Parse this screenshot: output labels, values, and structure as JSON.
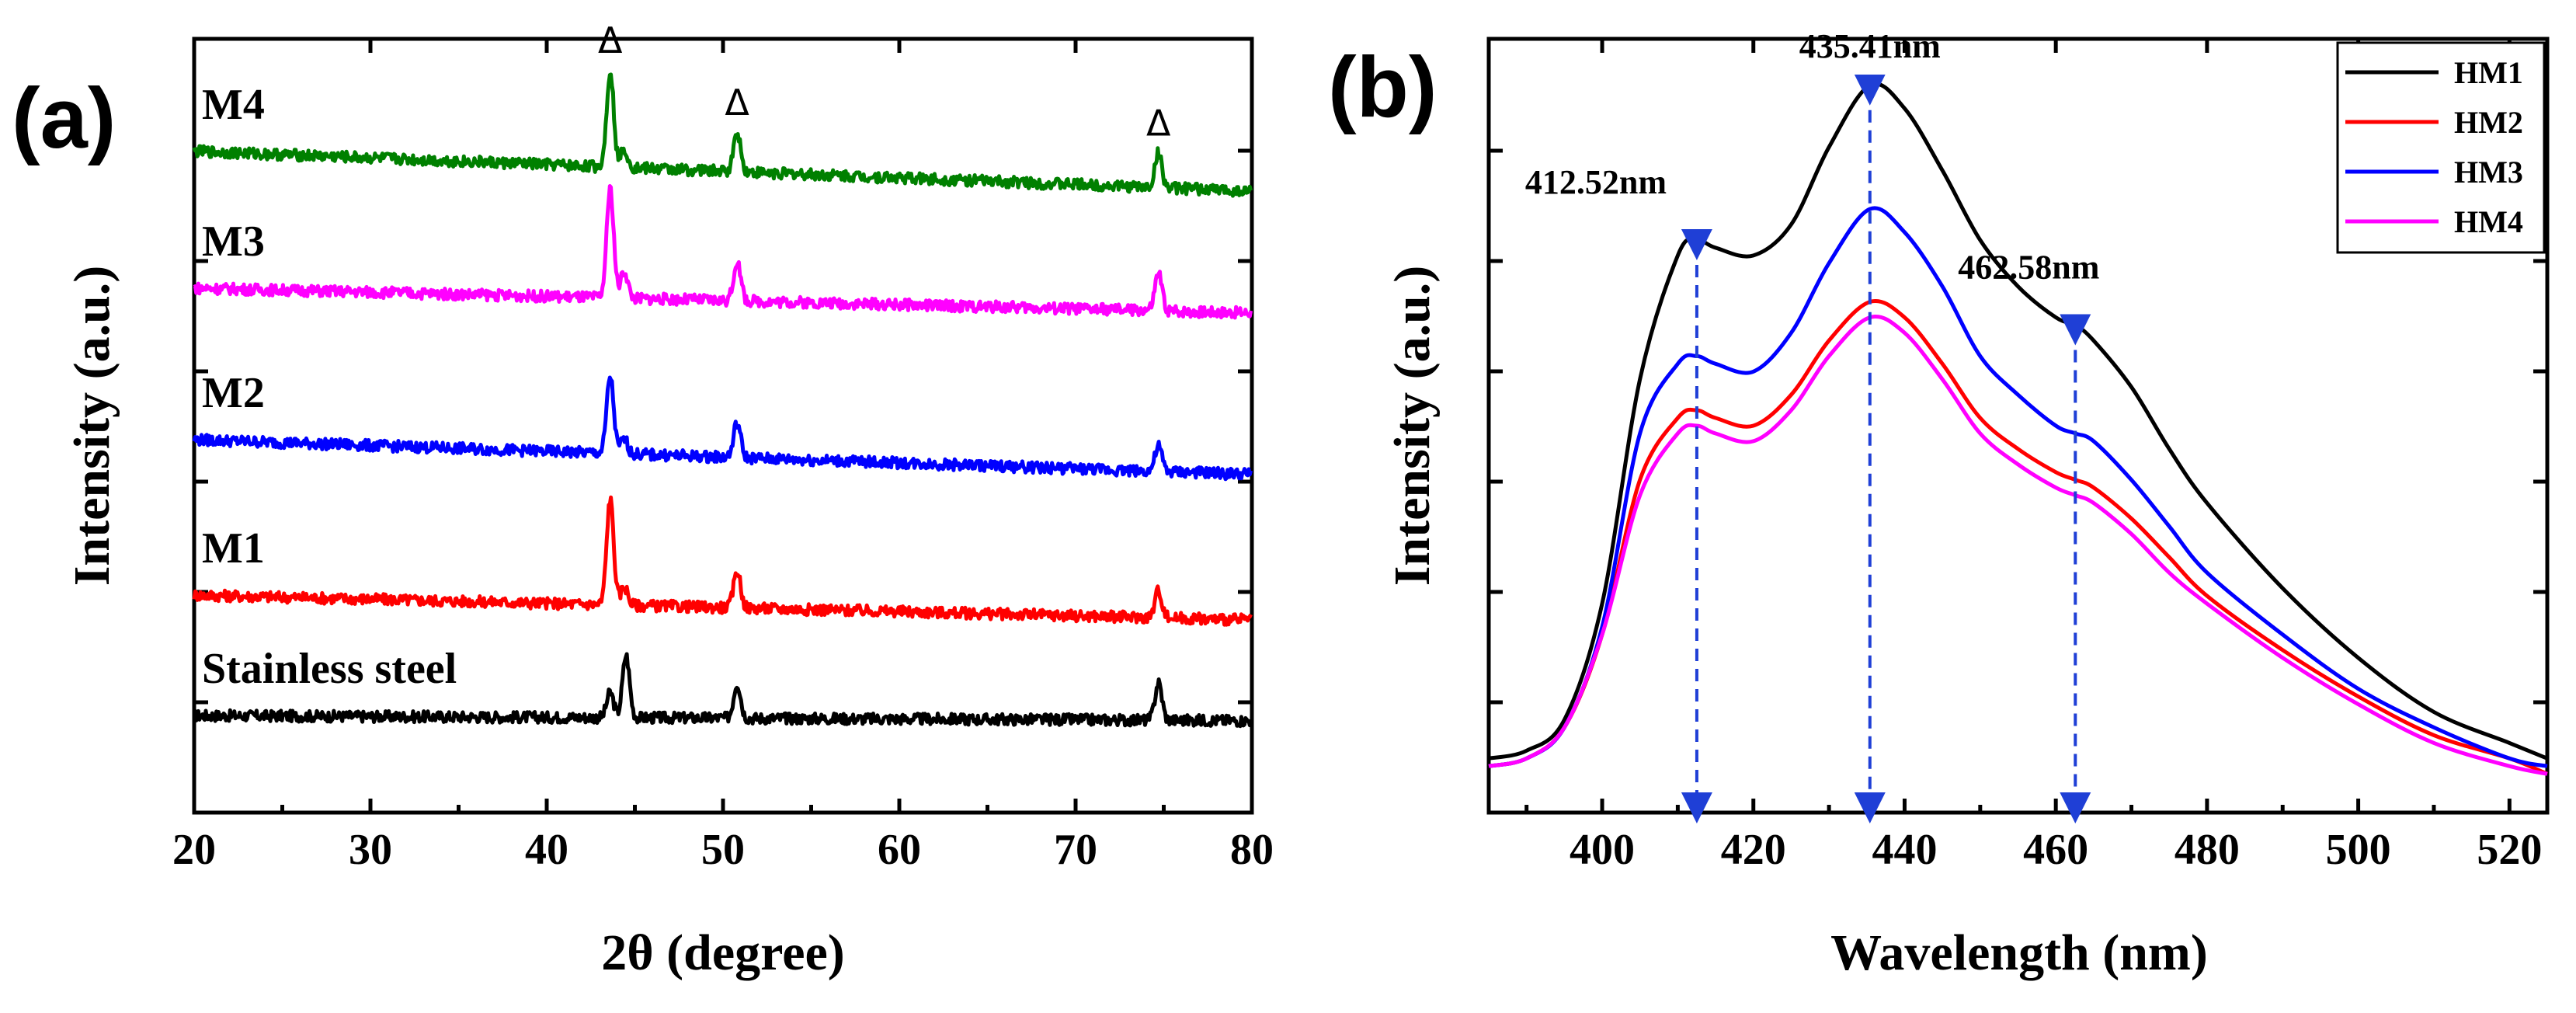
{
  "chart_data": [
    {
      "panel": "(a)",
      "type": "line",
      "xlabel": "2θ (degree)",
      "ylabel": "Intensity (a.u.)",
      "xlim": [
        20,
        80
      ],
      "xticks": [
        20,
        30,
        40,
        50,
        60,
        70,
        80
      ],
      "yticks_labeled": false,
      "peak_marker": "Δ",
      "peak_marker_positions": [
        43.6,
        50.8,
        74.7
      ],
      "series": [
        {
          "name": "Stainless steel",
          "color": "#000000",
          "baseline_start": 0.78,
          "baseline_end": 0.74,
          "peaks": [
            {
              "x": 43.6,
              "h": 0.2
            },
            {
              "x": 44.5,
              "h": 0.5
            },
            {
              "x": 50.8,
              "h": 0.28
            },
            {
              "x": 74.7,
              "h": 0.3
            }
          ]
        },
        {
          "name": "M1",
          "color": "#ff0000",
          "baseline_start": 1.75,
          "baseline_end": 1.55,
          "peaks": [
            {
              "x": 43.6,
              "h": 0.85
            },
            {
              "x": 44.4,
              "h": 0.15
            },
            {
              "x": 50.8,
              "h": 0.3
            },
            {
              "x": 74.7,
              "h": 0.22
            }
          ]
        },
        {
          "name": "M2",
          "color": "#0000ff",
          "baseline_start": 3.0,
          "baseline_end": 2.72,
          "peaks": [
            {
              "x": 43.6,
              "h": 0.62
            },
            {
              "x": 44.4,
              "h": 0.12
            },
            {
              "x": 50.8,
              "h": 0.28
            },
            {
              "x": 74.7,
              "h": 0.2
            }
          ]
        },
        {
          "name": "M3",
          "color": "#ff00ff",
          "baseline_start": 4.22,
          "baseline_end": 4.02,
          "peaks": [
            {
              "x": 43.6,
              "h": 0.88
            },
            {
              "x": 44.4,
              "h": 0.22
            },
            {
              "x": 50.8,
              "h": 0.32
            },
            {
              "x": 74.7,
              "h": 0.3
            }
          ]
        },
        {
          "name": "M4",
          "color": "#008000",
          "baseline_start": 5.32,
          "baseline_end": 5.0,
          "peaks": [
            {
              "x": 43.6,
              "h": 0.78
            },
            {
              "x": 44.4,
              "h": 0.15
            },
            {
              "x": 50.8,
              "h": 0.32
            },
            {
              "x": 74.7,
              "h": 0.28
            }
          ]
        }
      ]
    },
    {
      "panel": "(b)",
      "type": "line",
      "xlabel": "Wavelength (nm)",
      "ylabel": "Intensity (a.u.)",
      "xlim": [
        385,
        525
      ],
      "xticks": [
        400,
        420,
        440,
        460,
        480,
        500,
        520
      ],
      "ylim": [
        0,
        1.0
      ],
      "yticks_labeled": false,
      "legend": [
        "HM1",
        "HM2",
        "HM3",
        "HM4"
      ],
      "legend_position": "top-right",
      "annotations": [
        {
          "text": "412.52nm",
          "x": 412.52
        },
        {
          "text": "435.41nm",
          "x": 435.41
        },
        {
          "text": "462.58nm",
          "x": 462.58
        }
      ],
      "series": [
        {
          "name": "HM1",
          "color": "#000000",
          "x": [
            385,
            390,
            395,
            400,
            405,
            410,
            412.5,
            415,
            420,
            425,
            430,
            435.4,
            440,
            445,
            450,
            455,
            460,
            462.6,
            465,
            470,
            475,
            480,
            490,
            500,
            510,
            520,
            525
          ],
          "y": [
            0.07,
            0.08,
            0.12,
            0.27,
            0.56,
            0.72,
            0.74,
            0.73,
            0.72,
            0.76,
            0.86,
            0.94,
            0.91,
            0.83,
            0.74,
            0.68,
            0.64,
            0.63,
            0.61,
            0.55,
            0.47,
            0.4,
            0.29,
            0.2,
            0.13,
            0.09,
            0.07
          ]
        },
        {
          "name": "HM2",
          "color": "#ff0000",
          "x": [
            385,
            390,
            395,
            400,
            405,
            410,
            412.5,
            415,
            420,
            425,
            430,
            435.4,
            440,
            445,
            450,
            455,
            460,
            462.6,
            465,
            470,
            475,
            480,
            490,
            500,
            510,
            520,
            525
          ],
          "y": [
            0.06,
            0.07,
            0.11,
            0.23,
            0.43,
            0.51,
            0.52,
            0.51,
            0.5,
            0.54,
            0.61,
            0.66,
            0.64,
            0.58,
            0.51,
            0.47,
            0.44,
            0.43,
            0.42,
            0.38,
            0.33,
            0.28,
            0.21,
            0.15,
            0.1,
            0.07,
            0.05
          ]
        },
        {
          "name": "HM3",
          "color": "#0000ff",
          "x": [
            385,
            390,
            395,
            400,
            405,
            410,
            412.5,
            415,
            420,
            425,
            430,
            435.4,
            440,
            445,
            450,
            455,
            460,
            462.6,
            465,
            470,
            475,
            480,
            490,
            500,
            510,
            520,
            525
          ],
          "y": [
            0.06,
            0.07,
            0.11,
            0.24,
            0.49,
            0.58,
            0.59,
            0.58,
            0.57,
            0.62,
            0.71,
            0.78,
            0.75,
            0.68,
            0.59,
            0.54,
            0.5,
            0.49,
            0.48,
            0.43,
            0.37,
            0.31,
            0.23,
            0.16,
            0.11,
            0.07,
            0.06
          ]
        },
        {
          "name": "HM4",
          "color": "#ff00ff",
          "x": [
            385,
            390,
            395,
            400,
            405,
            410,
            412.5,
            415,
            420,
            425,
            430,
            435.4,
            440,
            445,
            450,
            455,
            460,
            462.6,
            465,
            470,
            475,
            480,
            490,
            500,
            510,
            520,
            525
          ],
          "y": [
            0.06,
            0.07,
            0.11,
            0.23,
            0.41,
            0.49,
            0.5,
            0.49,
            0.48,
            0.52,
            0.59,
            0.64,
            0.62,
            0.56,
            0.49,
            0.45,
            0.42,
            0.41,
            0.4,
            0.36,
            0.31,
            0.27,
            0.2,
            0.14,
            0.09,
            0.06,
            0.05
          ]
        }
      ]
    }
  ]
}
